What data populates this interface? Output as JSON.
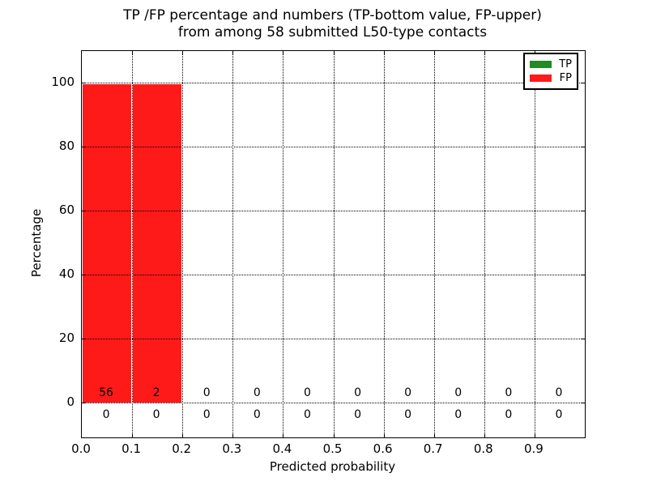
{
  "title": {
    "line1": "TP /FP percentage and numbers (TP-bottom value, FP-upper)",
    "line2": "from among 58 submitted L50-type contacts"
  },
  "axes": {
    "ylabel": "Percentage",
    "xlabel": "Predicted probability"
  },
  "legend": [
    {
      "label": "TP",
      "color": "#228b22"
    },
    {
      "label": "FP",
      "color": "#ff1a1a"
    }
  ],
  "colors": {
    "tp_green": "#228b22",
    "fp_red": "#ff1a1a",
    "grid": "#000000",
    "background": "#ffffff"
  },
  "chart_data": {
    "type": "bar",
    "stacked": true,
    "title": "TP /FP percentage and numbers (TP-bottom value, FP-upper) from among 58 submitted L50-type contacts",
    "xlabel": "Predicted probability",
    "ylabel": "Percentage",
    "total_submitted": 58,
    "contact_type": "L50",
    "xlim": [
      0.0,
      1.0
    ],
    "ylim": [
      -11,
      110
    ],
    "grid": true,
    "legend_position": "upper right",
    "bin_edges": [
      0.0,
      0.1,
      0.2,
      0.3,
      0.4,
      0.5,
      0.6,
      0.7,
      0.8,
      0.9,
      1.0
    ],
    "x_tick_labels": [
      "0.0",
      "0.1",
      "0.2",
      "0.3",
      "0.4",
      "0.5",
      "0.6",
      "0.7",
      "0.8",
      "0.9"
    ],
    "y_ticks": [
      0,
      20,
      40,
      60,
      80,
      100
    ],
    "series": [
      {
        "name": "TP",
        "color": "#228b22",
        "count_row": "below-axis",
        "percent": [
          0,
          0,
          0,
          0,
          0,
          0,
          0,
          0,
          0,
          0
        ],
        "counts": [
          0,
          0,
          0,
          0,
          0,
          0,
          0,
          0,
          0,
          0
        ]
      },
      {
        "name": "FP",
        "color": "#ff1a1a",
        "count_row": "above-axis",
        "percent": [
          100,
          100,
          0,
          0,
          0,
          0,
          0,
          0,
          0,
          0
        ],
        "counts": [
          56,
          2,
          0,
          0,
          0,
          0,
          0,
          0,
          0,
          0
        ]
      }
    ]
  }
}
